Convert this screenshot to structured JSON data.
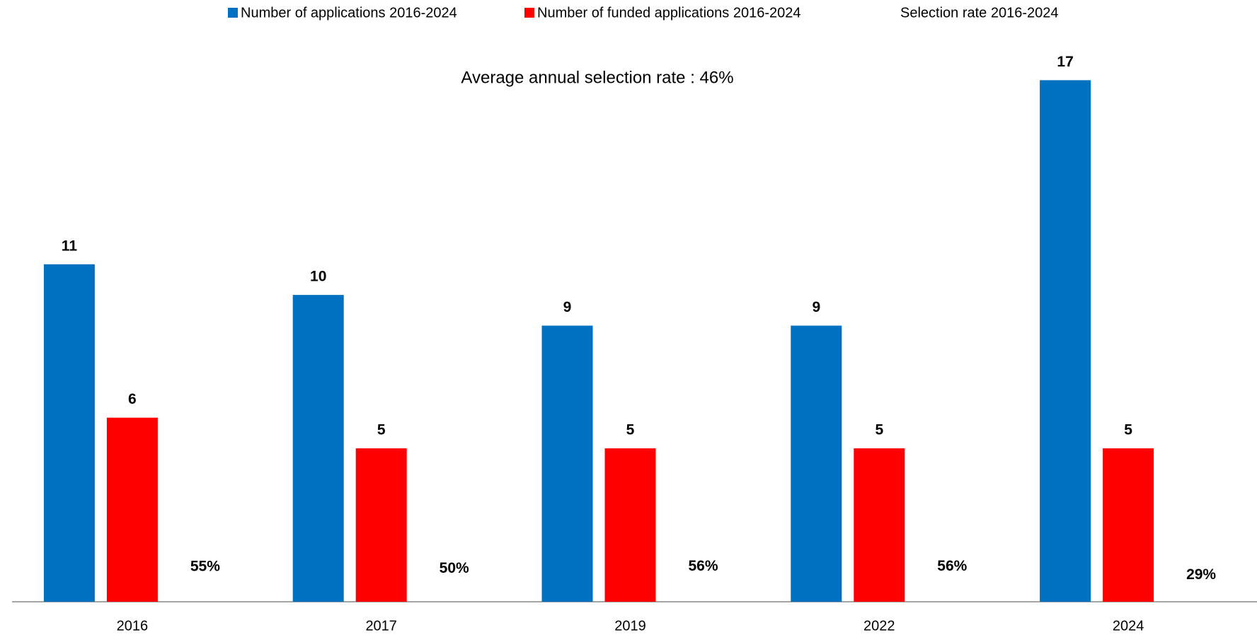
{
  "chart_data": {
    "type": "bar",
    "annotation": "Average annual selection rate : 46%",
    "categories": [
      "2016",
      "2017",
      "2019",
      "2022",
      "2024"
    ],
    "series": [
      {
        "name": "Number of applications 2016-2024",
        "color": "#0070c0",
        "values": [
          11,
          10,
          9,
          9,
          17
        ]
      },
      {
        "name": "Number of funded applications 2016-2024",
        "color": "#ff0000",
        "values": [
          6,
          5,
          5,
          5,
          5
        ]
      },
      {
        "name": "Selection rate 2016-2024",
        "color": "none",
        "values": [
          0.55,
          0.5,
          0.56,
          0.56,
          0.29
        ],
        "value_labels": [
          "55%",
          "50%",
          "56%",
          "56%",
          "29%"
        ]
      }
    ],
    "ylim": [
      0,
      18
    ]
  }
}
